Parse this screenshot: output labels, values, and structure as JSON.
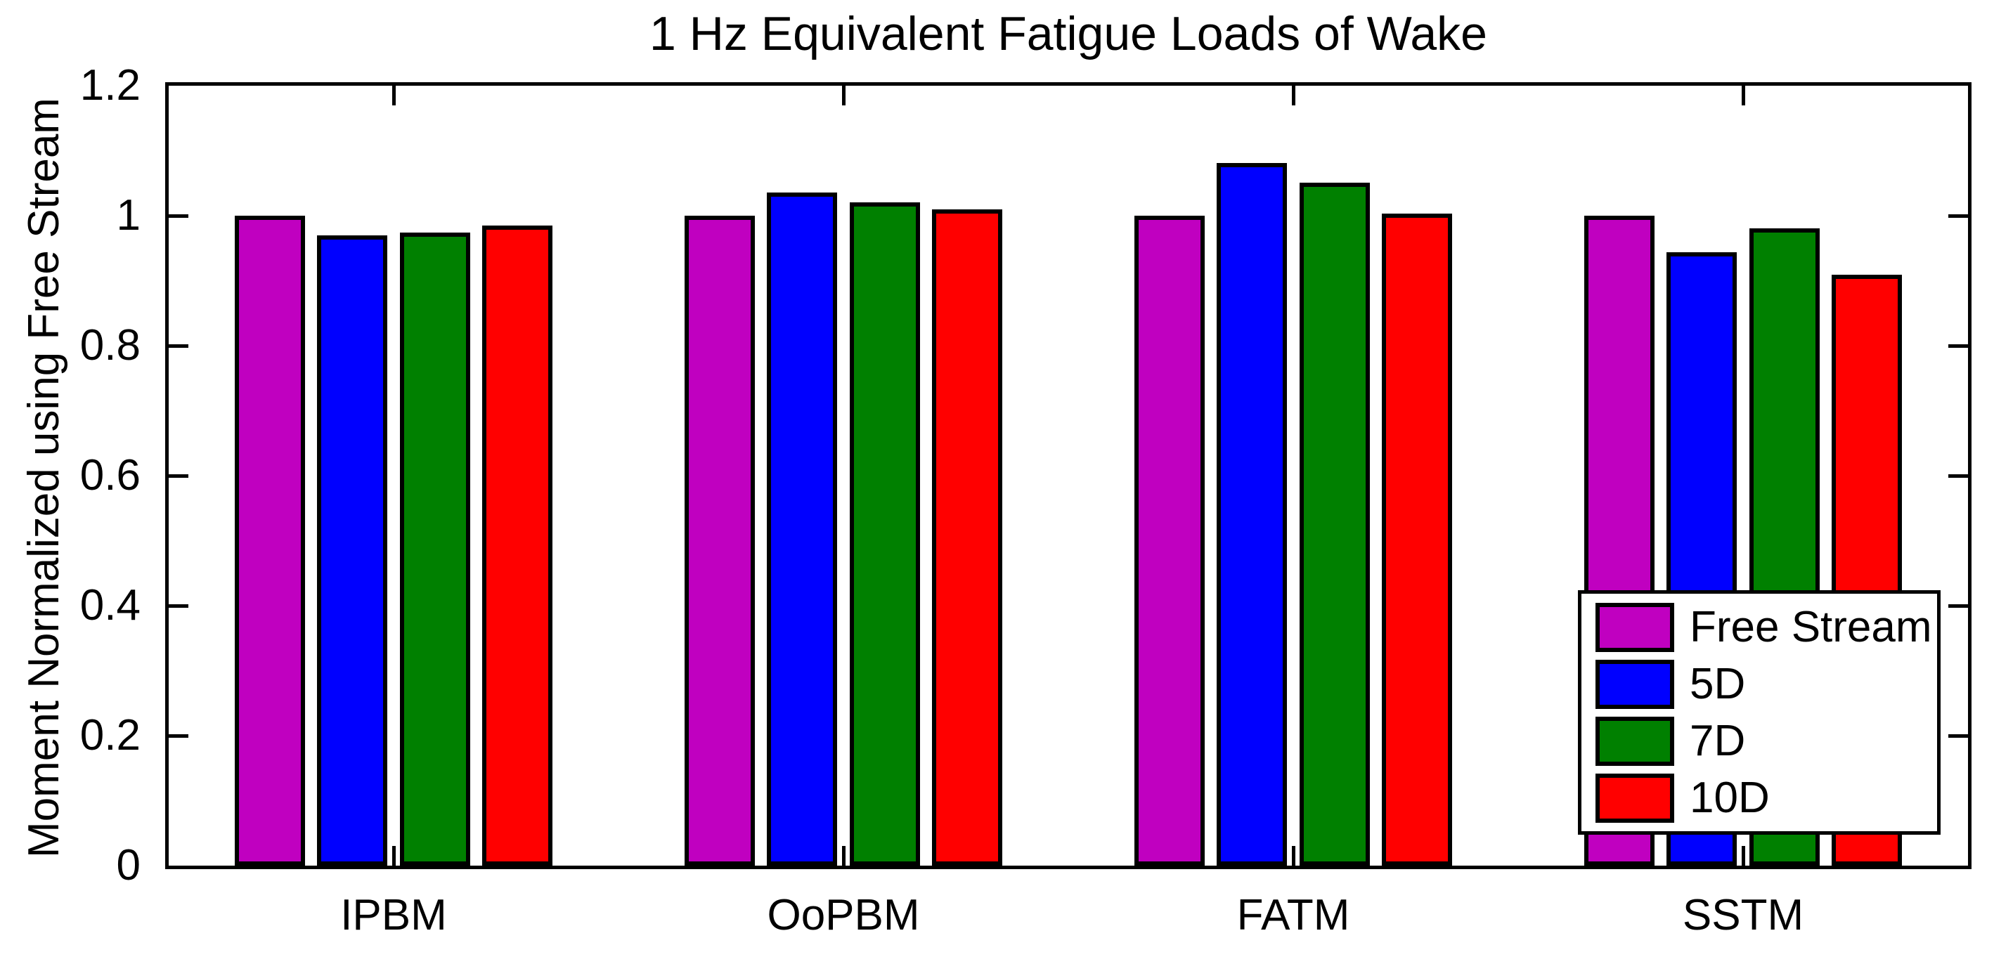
{
  "figure": {
    "background": "#ffffff",
    "axis_color": "#000000"
  },
  "chart_data": {
    "type": "bar",
    "title": "1 Hz Equivalent Fatigue Loads of Wake",
    "xlabel": "",
    "ylabel": "Moment Normalized using Free Stream",
    "categories": [
      "IPBM",
      "OoPBM",
      "FATM",
      "SSTM"
    ],
    "series": [
      {
        "name": "Free Stream",
        "color": "#C000C0",
        "values": [
          1.0,
          1.0,
          1.0,
          1.0
        ]
      },
      {
        "name": "5D",
        "color": "#0000FF",
        "values": [
          0.97,
          1.036,
          1.081,
          0.944
        ]
      },
      {
        "name": "7D",
        "color": "#008000",
        "values": [
          0.974,
          1.021,
          1.051,
          0.981
        ]
      },
      {
        "name": "10D",
        "color": "#FF0000",
        "values": [
          0.985,
          1.01,
          1.003,
          0.909
        ]
      }
    ],
    "ylim": [
      0,
      1.2
    ],
    "yticks": [
      0,
      0.2,
      0.4,
      0.6,
      0.8,
      1,
      1.2
    ],
    "ytick_labels": [
      "0",
      "0.2",
      "0.4",
      "0.6",
      "0.8",
      "1",
      "1.2"
    ],
    "bar_edge_color": "#000000",
    "grid": false,
    "legend_position": "lower right",
    "legend_labels": [
      "Free Stream",
      "5D",
      "7D",
      "10D"
    ]
  }
}
